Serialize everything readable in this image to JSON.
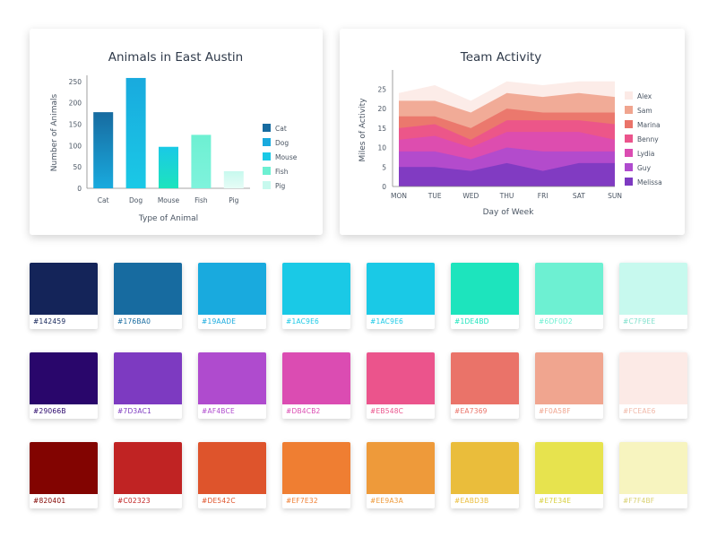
{
  "bar_chart": {
    "title": "Animals in East Austin",
    "xlabel": "Type of Animal",
    "ylabel": "Number of Animals"
  },
  "area_chart": {
    "title": "Team Activity",
    "xlabel": "Day of Week",
    "ylabel": "Miles of Activity"
  },
  "chart_data": [
    {
      "type": "bar",
      "title": "Animals in East Austin",
      "xlabel": "Type of Animal",
      "ylabel": "Number of Animals",
      "categories": [
        "Cat",
        "Dog",
        "Mouse",
        "Fish",
        "Pig"
      ],
      "values": [
        178,
        258,
        97,
        125,
        40
      ],
      "colors": [
        [
          "#176BA0",
          "#19AADE"
        ],
        [
          "#19AADE",
          "#1AC9E6"
        ],
        [
          "#1AC9E6",
          "#1DE4BD"
        ],
        [
          "#6DF0D2",
          "#7FF3DC"
        ],
        [
          "#C7F9EE",
          "#E6FCF6"
        ]
      ],
      "ylim": [
        0,
        260
      ],
      "yticks": [
        0,
        50,
        100,
        150,
        200,
        250
      ],
      "legend": [
        "Cat",
        "Dog",
        "Mouse",
        "Fish",
        "Pig"
      ],
      "legend_colors": [
        "#176BA0",
        "#19AADE",
        "#1AC9E6",
        "#6DF0D2",
        "#C7F9EE"
      ],
      "legend_position": "right",
      "grid": false
    },
    {
      "type": "area",
      "title": "Team Activity",
      "xlabel": "Day of Week",
      "ylabel": "Miles of Activity",
      "categories": [
        "MON",
        "TUE",
        "WED",
        "THU",
        "FRI",
        "SAT",
        "SUN"
      ],
      "ylim": [
        0,
        29
      ],
      "yticks": [
        0,
        5,
        10,
        15,
        20,
        25
      ],
      "stacked": true,
      "series": [
        {
          "name": "Melissa",
          "color": "#7D3AC1",
          "values": [
            5,
            5,
            4,
            6,
            4,
            6,
            6
          ]
        },
        {
          "name": "Guy",
          "color": "#AF4BCE",
          "values": [
            4,
            4,
            3,
            4,
            5,
            3,
            3
          ]
        },
        {
          "name": "Lydia",
          "color": "#DB4CB2",
          "values": [
            3,
            4,
            3,
            4,
            5,
            5,
            3
          ]
        },
        {
          "name": "Benny",
          "color": "#EB548C",
          "values": [
            3,
            3,
            2,
            3,
            3,
            3,
            4
          ]
        },
        {
          "name": "Marina",
          "color": "#EA7369",
          "values": [
            3,
            2,
            3,
            3,
            2,
            2,
            3
          ]
        },
        {
          "name": "Sam",
          "color": "#F0A58F",
          "values": [
            4,
            4,
            4,
            4,
            4,
            5,
            4
          ]
        },
        {
          "name": "Alex",
          "color": "#FCEAE6",
          "values": [
            2,
            4,
            3,
            3,
            3,
            3,
            4
          ]
        }
      ],
      "legend_position": "right",
      "grid": false
    }
  ],
  "palette": {
    "rows": [
      [
        {
          "hex": "#142459",
          "color": "#142459",
          "text_color": "#142459"
        },
        {
          "hex": "#176BA0",
          "color": "#176BA0",
          "text_color": "#176BA0"
        },
        {
          "hex": "#19AADE",
          "color": "#19AADE",
          "text_color": "#19AADE"
        },
        {
          "hex": "#1AC9E6",
          "color": "#1AC9E6",
          "text_color": "#1AC9E6"
        },
        {
          "hex": "#1AC9E6",
          "color": "#1AC9E6",
          "text_color": "#1AC9E6"
        },
        {
          "hex": "#1DE4BD",
          "color": "#1DE4BD",
          "text_color": "#1DE4BD"
        },
        {
          "hex": "#6DF0D2",
          "color": "#6DF0D2",
          "text_color": "#6DF0D2"
        },
        {
          "hex": "#C7F9EE",
          "color": "#C7F9EE",
          "text_color": "#7FE0CC"
        }
      ],
      [
        {
          "hex": "#29066B",
          "color": "#29066B",
          "text_color": "#29066B"
        },
        {
          "hex": "#7D3AC1",
          "color": "#7D3AC1",
          "text_color": "#7D3AC1"
        },
        {
          "hex": "#AF4BCE",
          "color": "#AF4BCE",
          "text_color": "#AF4BCE"
        },
        {
          "hex": "#DB4CB2",
          "color": "#DB4CB2",
          "text_color": "#DB4CB2"
        },
        {
          "hex": "#EB548C",
          "color": "#EB548C",
          "text_color": "#EB548C"
        },
        {
          "hex": "#EA7369",
          "color": "#EA7369",
          "text_color": "#EA7369"
        },
        {
          "hex": "#F0A58F",
          "color": "#F0A58F",
          "text_color": "#F0A58F"
        },
        {
          "hex": "#FCEAE6",
          "color": "#FCEAE6",
          "text_color": "#F0B8A8"
        }
      ],
      [
        {
          "hex": "#820401",
          "color": "#820401",
          "text_color": "#820401"
        },
        {
          "hex": "#C02323",
          "color": "#C02323",
          "text_color": "#C02323"
        },
        {
          "hex": "#DE542C",
          "color": "#DE542C",
          "text_color": "#DE542C"
        },
        {
          "hex": "#EF7E32",
          "color": "#EF7E32",
          "text_color": "#EF7E32"
        },
        {
          "hex": "#EE9A3A",
          "color": "#EE9A3A",
          "text_color": "#EE9A3A"
        },
        {
          "hex": "#EABD3B",
          "color": "#EABD3B",
          "text_color": "#EABD3B"
        },
        {
          "hex": "#E7E34E",
          "color": "#E7E34E",
          "text_color": "#D8D040"
        },
        {
          "hex": "#F7F4BF",
          "color": "#F7F4BF",
          "text_color": "#D8D070"
        }
      ]
    ]
  }
}
